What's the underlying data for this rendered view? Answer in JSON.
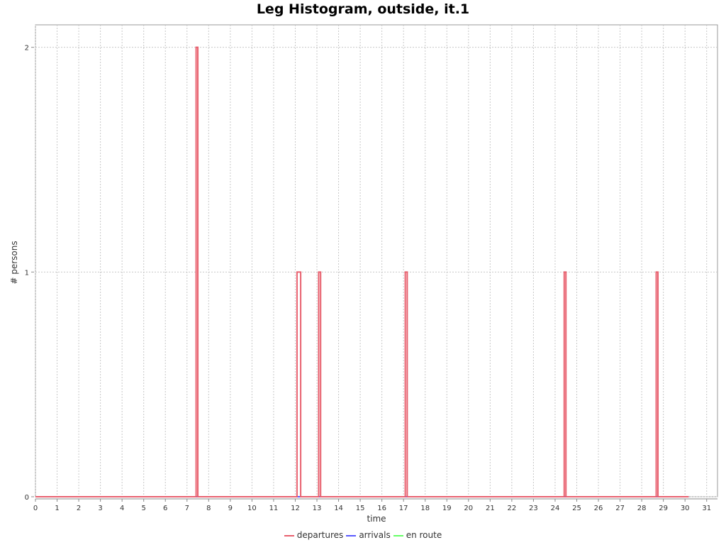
{
  "chart_data": {
    "type": "line",
    "title": "Leg Histogram, outside, it.1",
    "xlabel": "time",
    "ylabel": "# persons",
    "xlim": [
      0,
      31.5
    ],
    "ylim": [
      0,
      2.1
    ],
    "x_ticks": [
      0,
      1,
      2,
      3,
      4,
      5,
      6,
      7,
      8,
      9,
      10,
      11,
      12,
      13,
      14,
      15,
      16,
      17,
      18,
      19,
      20,
      21,
      22,
      23,
      24,
      25,
      26,
      27,
      28,
      29,
      30,
      31
    ],
    "y_ticks": [
      0,
      1,
      2
    ],
    "grid": true,
    "legend_position": "bottom",
    "series": [
      {
        "name": "departures",
        "color": "#e8606e",
        "x": [
          0,
          7.42,
          7.42,
          7.5,
          7.5,
          12.08,
          12.08,
          12.17,
          12.17,
          12.25,
          12.25,
          13.08,
          13.08,
          13.17,
          13.17,
          17.08,
          17.08,
          17.17,
          17.17,
          24.42,
          24.42,
          24.5,
          24.5,
          28.67,
          28.67,
          28.75,
          28.75,
          30.17
        ],
        "y": [
          0,
          0,
          2,
          2,
          0,
          0,
          1,
          1,
          1,
          1,
          0,
          0,
          1,
          1,
          0,
          0,
          1,
          1,
          0,
          0,
          1,
          1,
          0,
          0,
          1,
          1,
          0,
          0
        ]
      },
      {
        "name": "arrivals",
        "color": "#5a5aff",
        "x": [
          0,
          30.17
        ],
        "y": [
          0,
          0
        ]
      },
      {
        "name": "en route",
        "color": "#66ff66",
        "x": [
          0,
          30.17
        ],
        "y": [
          0,
          0
        ]
      }
    ]
  }
}
